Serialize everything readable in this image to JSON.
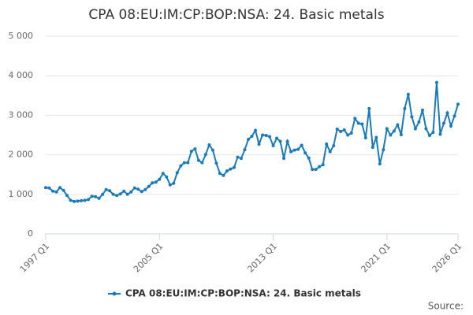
{
  "chart_data": {
    "type": "line",
    "title": "CPA 08:EU:IM:CP:BOP:NSA: 24. Basic metals",
    "source": "Source:",
    "categories": [
      "1997 Q1",
      null,
      null,
      null,
      null,
      null,
      null,
      null,
      null,
      null,
      null,
      null,
      null,
      null,
      null,
      null,
      null,
      null,
      null,
      null,
      null,
      null,
      null,
      null,
      null,
      null,
      null,
      null,
      null,
      null,
      null,
      null,
      "2005 Q1",
      null,
      null,
      null,
      null,
      null,
      null,
      null,
      null,
      null,
      null,
      null,
      null,
      null,
      null,
      null,
      null,
      null,
      null,
      null,
      null,
      null,
      null,
      null,
      null,
      null,
      null,
      null,
      null,
      null,
      null,
      null,
      "2013 Q1",
      null,
      null,
      null,
      null,
      null,
      null,
      null,
      null,
      null,
      null,
      null,
      null,
      null,
      null,
      null,
      null,
      null,
      null,
      null,
      null,
      null,
      null,
      null,
      null,
      null,
      null,
      null,
      null,
      null,
      null,
      null,
      "2021 Q1",
      null,
      null,
      null,
      null,
      null,
      null,
      null,
      null,
      null,
      null,
      null,
      null,
      null,
      null,
      null,
      null,
      null,
      null,
      null,
      "2026 Q1"
    ],
    "series": [
      {
        "name": "CPA 08:EU:IM:CP:BOP:NSA: 24. Basic metals",
        "color": "#1a7ab8",
        "values": [
          1170,
          1160,
          1080,
          1060,
          1170,
          1100,
          970,
          850,
          820,
          830,
          840,
          850,
          870,
          950,
          940,
          900,
          1000,
          1120,
          1090,
          1000,
          970,
          1010,
          1080,
          1000,
          1060,
          1160,
          1130,
          1070,
          1120,
          1200,
          1290,
          1310,
          1380,
          1530,
          1440,
          1240,
          1280,
          1550,
          1720,
          1800,
          1800,
          2090,
          2150,
          1860,
          1800,
          2010,
          2250,
          2120,
          1790,
          1530,
          1480,
          1590,
          1640,
          1680,
          1940,
          1910,
          2130,
          2390,
          2470,
          2620,
          2270,
          2500,
          2490,
          2460,
          2230,
          2420,
          2340,
          1910,
          2340,
          2080,
          2120,
          2140,
          2240,
          2050,
          1920,
          1630,
          1630,
          1700,
          1750,
          2270,
          2080,
          2230,
          2650,
          2590,
          2630,
          2500,
          2550,
          2920,
          2800,
          2780,
          2430,
          3170,
          2190,
          2440,
          1770,
          2130,
          2660,
          2500,
          2600,
          2760,
          2510,
          3170,
          3530,
          2960,
          2660,
          2830,
          3130,
          2660,
          2490,
          2570,
          3830,
          2520,
          2800,
          3060,
          2730,
          2980,
          3280
        ]
      }
    ],
    "ylim": [
      0,
      5000
    ],
    "yticks": [
      0,
      {
        "value": 1000,
        "label": "1 000"
      },
      {
        "value": 2000,
        "label": "2 000"
      },
      {
        "value": 3000,
        "label": "3 000"
      },
      {
        "value": 4000,
        "label": "4 000"
      },
      {
        "value": 5000,
        "label": "5 000"
      }
    ],
    "grid": true
  }
}
